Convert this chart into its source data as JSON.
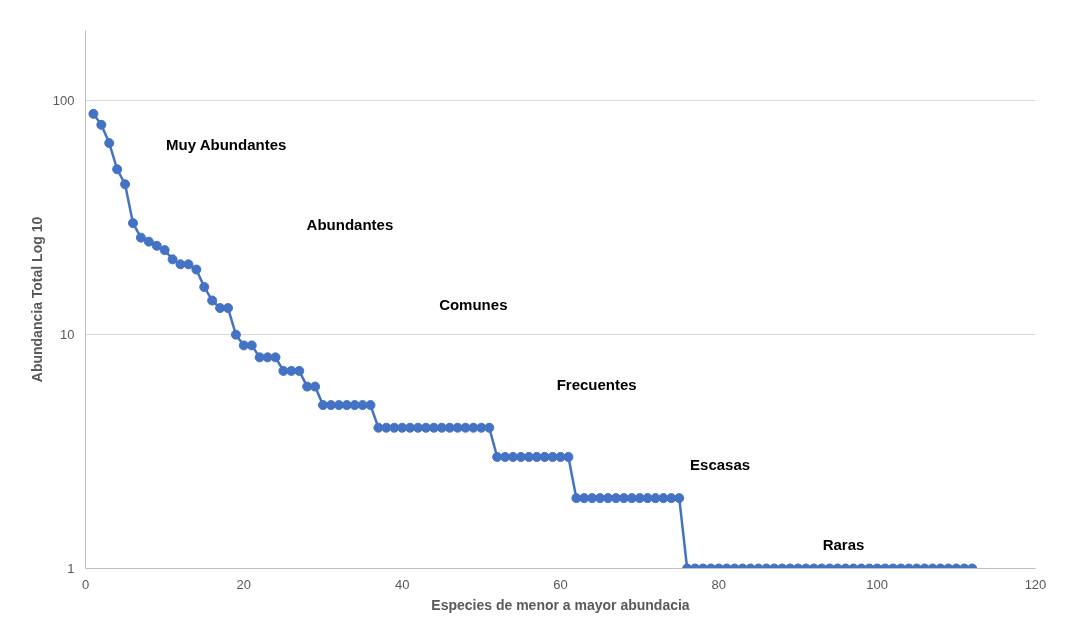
{
  "chart_data": {
    "type": "line",
    "xlabel": "Especies de menor a mayor abundacia",
    "ylabel": "Abundancia Total Log 10",
    "x": [
      1,
      2,
      3,
      4,
      5,
      6,
      7,
      8,
      9,
      10,
      11,
      12,
      13,
      14,
      15,
      16,
      17,
      18,
      19,
      20,
      21,
      22,
      23,
      24,
      25,
      26,
      27,
      28,
      29,
      30,
      31,
      32,
      33,
      34,
      35,
      36,
      37,
      38,
      39,
      40,
      41,
      42,
      43,
      44,
      45,
      46,
      47,
      48,
      49,
      50,
      51,
      52,
      53,
      54,
      55,
      56,
      57,
      58,
      59,
      60,
      61,
      62,
      63,
      64,
      65,
      66,
      67,
      68,
      69,
      70,
      71,
      72,
      73,
      74,
      75,
      76,
      77,
      78,
      79,
      80,
      81,
      82,
      83,
      84,
      85,
      86,
      87,
      88,
      89,
      90,
      91,
      92,
      93,
      94,
      95,
      96,
      97,
      98,
      99,
      100,
      101,
      102,
      103,
      104,
      105,
      106,
      107,
      108,
      109,
      110,
      111,
      112
    ],
    "series": [
      {
        "color": "#4472c4",
        "values": [
          88,
          79,
          66,
          51,
          44,
          30,
          26,
          25,
          24,
          23,
          21,
          20,
          20,
          19,
          16,
          14,
          13,
          13,
          10,
          9,
          9,
          8,
          8,
          8,
          7,
          7,
          7,
          6,
          6,
          5,
          5,
          5,
          5,
          5,
          5,
          5,
          4,
          4,
          4,
          4,
          4,
          4,
          4,
          4,
          4,
          4,
          4,
          4,
          4,
          4,
          4,
          3,
          3,
          3,
          3,
          3,
          3,
          3,
          3,
          3,
          3,
          2,
          2,
          2,
          2,
          2,
          2,
          2,
          2,
          2,
          2,
          2,
          2,
          2,
          2,
          1,
          1,
          1,
          1,
          1,
          1,
          1,
          1,
          1,
          1,
          1,
          1,
          1,
          1,
          1,
          1,
          1,
          1,
          1,
          1,
          1,
          1,
          1,
          1,
          1,
          1,
          1,
          1,
          1,
          1,
          1,
          1,
          1,
          1,
          1,
          1,
          1
        ]
      }
    ],
    "log": "y",
    "xlim": [
      0,
      120
    ],
    "ylim": [
      1,
      200
    ],
    "xticks": [
      0,
      20,
      40,
      60,
      80,
      100,
      120
    ],
    "yticks": [
      1,
      10,
      100
    ],
    "grid": "y",
    "marker": "circle",
    "line_style": "solid",
    "annotations": [
      "Muy Abundantes",
      "Abundantes",
      "Comunes",
      "Frecuentes",
      "Escasas",
      "Raras"
    ]
  }
}
